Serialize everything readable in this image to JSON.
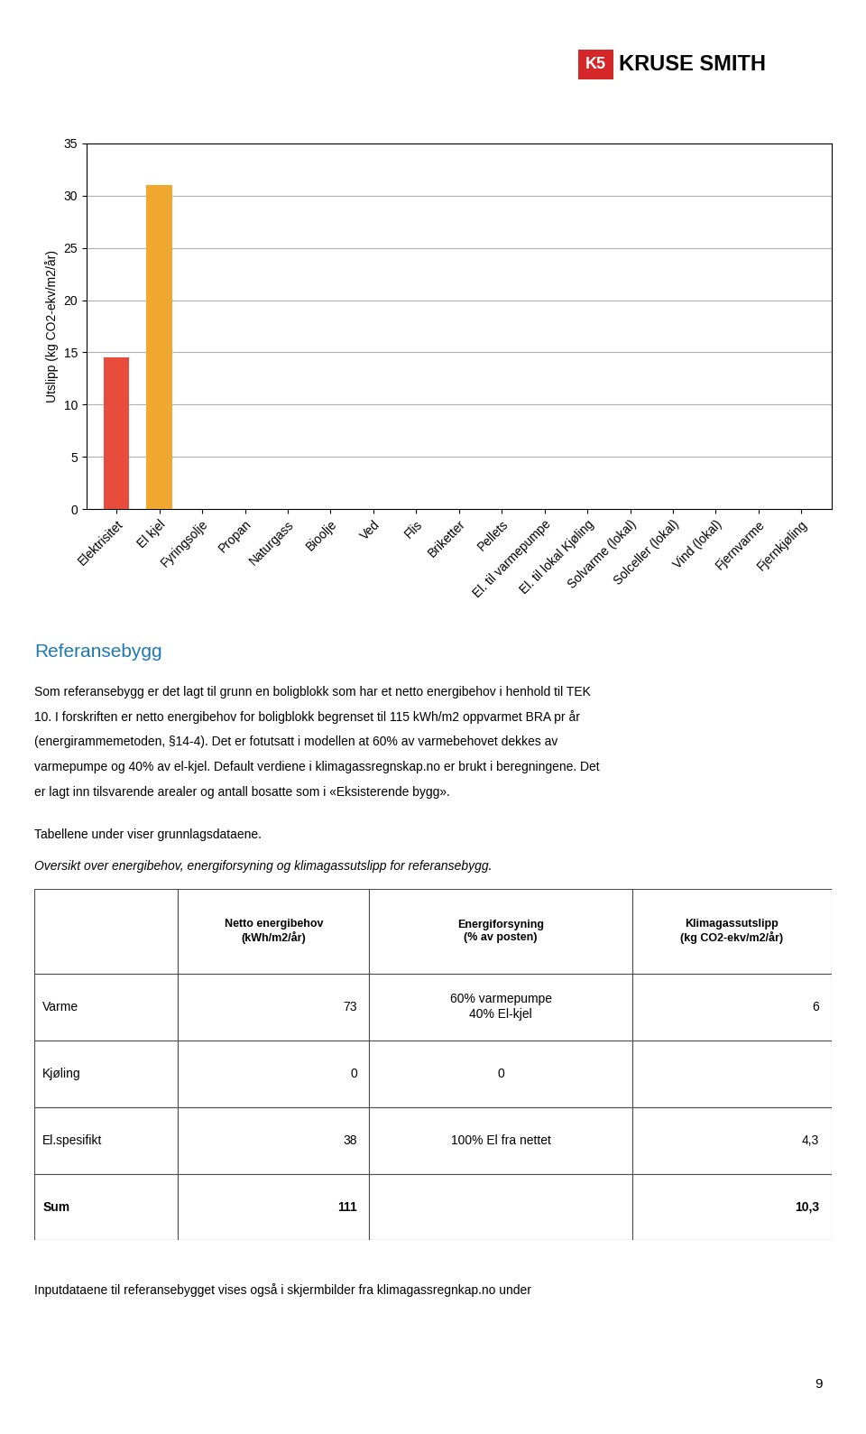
{
  "chart_data": {
    "type": "bar",
    "categories": [
      "Elektrisitet",
      "El kjel",
      "Fyringsolje",
      "Propan",
      "Naturgass",
      "Bioolje",
      "Ved",
      "Flis",
      "Briketter",
      "Pellets",
      "El. til varmepumpe",
      "El. til lokal Kjøling",
      "Solvarme (lokal)",
      "Solceller (lokal)",
      "Vind (lokal)",
      "Fjernvarme",
      "Fjernkjøling"
    ],
    "values": [
      14.5,
      31.0,
      0.0,
      0.0,
      0.0,
      0.0,
      0.0,
      0.0,
      0.0,
      0.0,
      0.0,
      0.0,
      0.0,
      0.0,
      0.0,
      0.0,
      0.0
    ],
    "colors": [
      "#e74c3c",
      "#f0a830",
      "#c0c0c0",
      "#c0c0c0",
      "#c0c0c0",
      "#c0c0c0",
      "#c0c0c0",
      "#c0c0c0",
      "#c0c0c0",
      "#c0c0c0",
      "#c0c0c0",
      "#c0c0c0",
      "#c0c0c0",
      "#c0c0c0",
      "#c0c0c0",
      "#c0c0c0",
      "#c0c0c0"
    ],
    "ylabel": "Utslipp (kg CO2-ekv/m2/år)",
    "ylim": [
      0,
      35
    ],
    "yticks": [
      0,
      5,
      10,
      15,
      20,
      25,
      30,
      35
    ],
    "grid": true
  },
  "page": {
    "logo": [
      "K5",
      "KRUSE SMITH"
    ],
    "heading": "Referansebygg",
    "body_lines": [
      "Som referansebygg er det lagt til grunn en boligblokk som har et netto energibehov i henhold til TEK",
      "10. I forskriften er netto energibehov for boligblokk begrenset til 115 kWh/m2 oppvarmet BRA pr år",
      "(energirammemetoden, §14-4). Det er fotutsatt i modellen at 60% av varmebehovet dekkes av",
      "varmepumpe og 40% av el-kjel. Default verdiene i klimagassregnskap.no er brukt i beregningene. Det",
      "er lagt inn tilsvarende arealer og antall bosatte som i «Eksisterende bygg»."
    ],
    "notes": [
      "Tabellene under viser grunnlagsdataene.",
      "Oversikt over energibehov, energiforsyning og klimagassutslipp for referansebygg."
    ],
    "table": {
      "headers": [
        "",
        "Netto energibehov\n(kWh/m2/år)",
        "Energiforsyning\n(% av posten)",
        "Klimagassutslipp\n(kg CO2-ekv/m2/år)"
      ],
      "rows": [
        [
          "Varme",
          "73",
          "60% varmepumpe\n40% El-kjel",
          "6"
        ],
        [
          "Kjøling",
          "0",
          "0",
          ""
        ],
        [
          "El.spesifikt",
          "38",
          "100% El fra nettet",
          "4,3"
        ],
        [
          "Sum",
          "111",
          "",
          "10,3"
        ]
      ]
    },
    "footer": "Inputdataene til referansebygget vises også i skjermbilder fra klimagassregnkap.no under",
    "page_number": "9"
  }
}
